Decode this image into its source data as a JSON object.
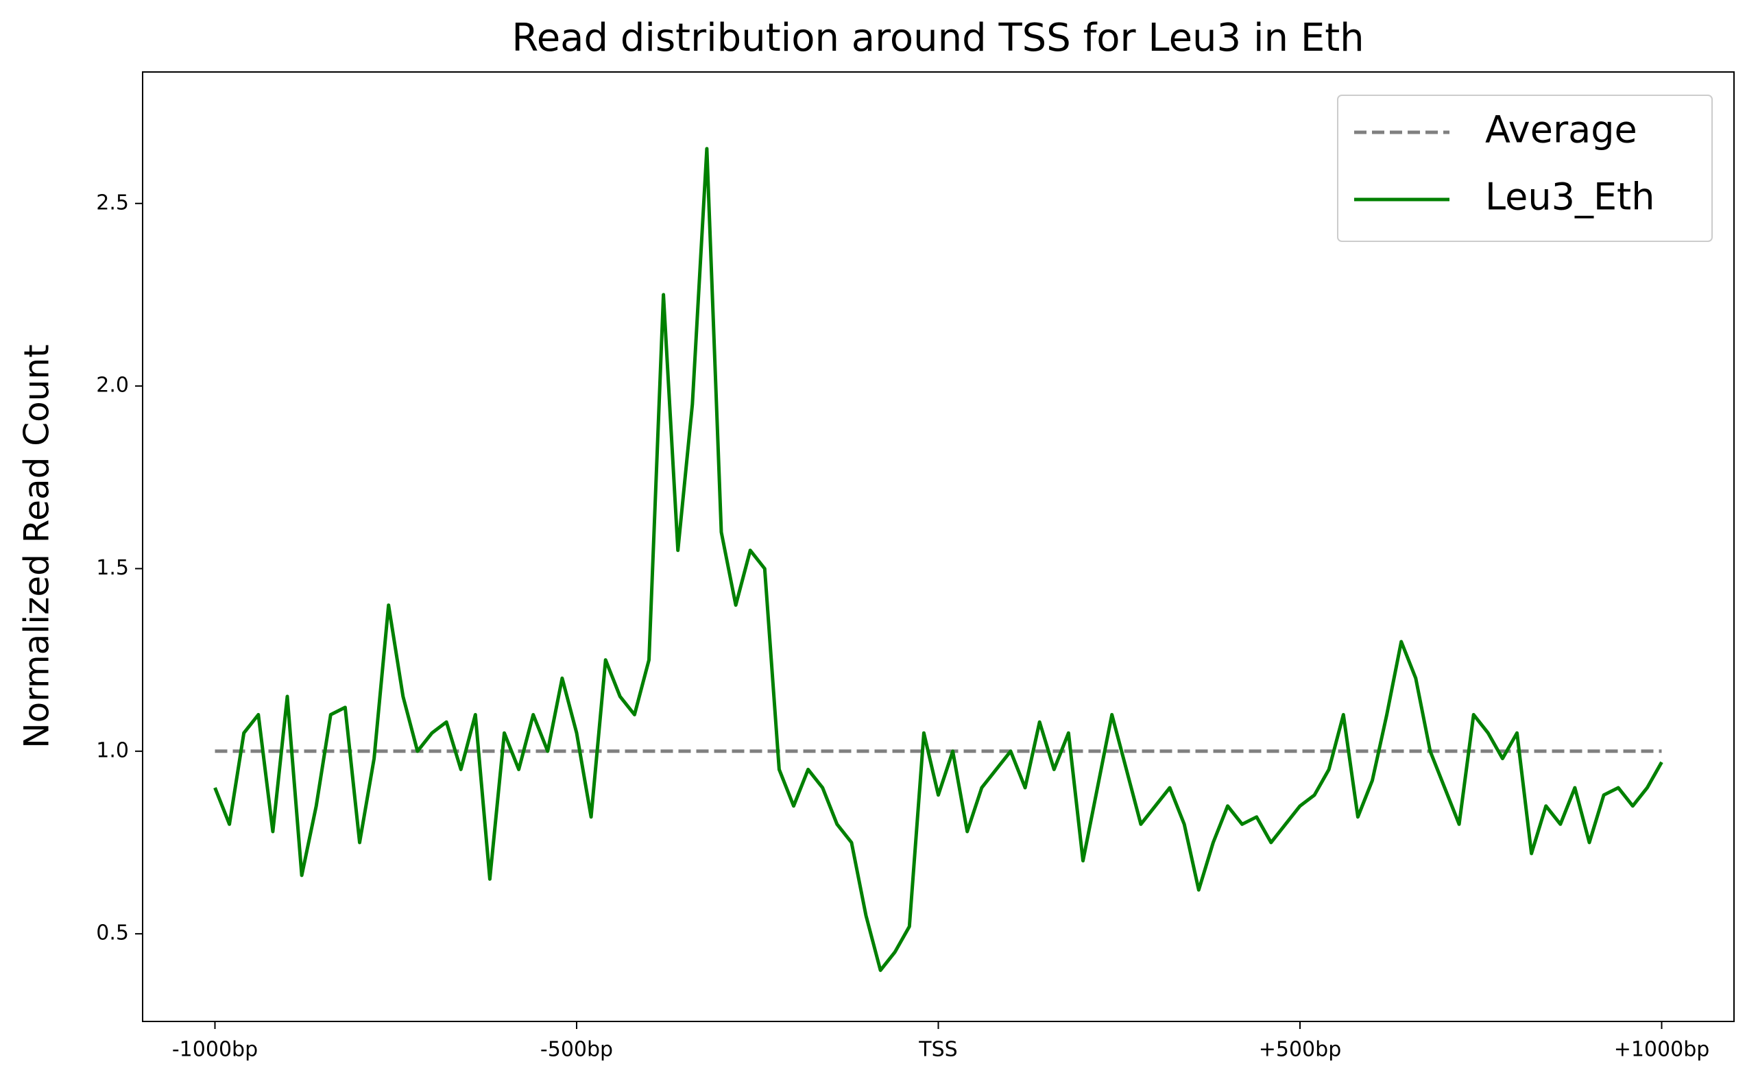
{
  "chart_data": {
    "type": "line",
    "title": "Read distribution around TSS for Leu3 in Eth",
    "y_label": "Normalized Read Count",
    "xlim": [
      -1100,
      1100
    ],
    "ylim": [
      0.26,
      2.86
    ],
    "xticks": [
      {
        "value": -1000,
        "label": "-1000bp"
      },
      {
        "value": -500,
        "label": "-500bp"
      },
      {
        "value": 0,
        "label": "TSS"
      },
      {
        "value": 500,
        "label": "+500bp"
      },
      {
        "value": 1000,
        "label": "+1000bp"
      }
    ],
    "yticks": [
      0.5,
      {
        "value": 1,
        "label": "1.0"
      },
      1.5,
      {
        "value": 2,
        "label": "2.0"
      },
      2.5
    ],
    "legend": "upper right",
    "series": [
      {
        "name": "Average",
        "color": "#808080",
        "dashed": true,
        "x": [
          -1000,
          1000
        ],
        "values": [
          1,
          1
        ]
      },
      {
        "name": "Leu3_Eth",
        "color": "#008000",
        "dashed": false,
        "x": [
          -1000,
          -980,
          -960,
          -940,
          -920,
          -900,
          -880,
          -860,
          -840,
          -820,
          -800,
          -780,
          -760,
          -740,
          -720,
          -700,
          -680,
          -660,
          -640,
          -620,
          -600,
          -580,
          -560,
          -540,
          -520,
          -500,
          -480,
          -460,
          -440,
          -420,
          -400,
          -380,
          -360,
          -340,
          -320,
          -300,
          -280,
          -260,
          -240,
          -220,
          -200,
          -180,
          -160,
          -140,
          -120,
          -100,
          -80,
          -60,
          -40,
          -20,
          0,
          20,
          40,
          60,
          80,
          100,
          120,
          140,
          160,
          180,
          200,
          220,
          240,
          260,
          280,
          300,
          320,
          340,
          360,
          380,
          400,
          420,
          440,
          460,
          480,
          500,
          520,
          540,
          560,
          580,
          600,
          620,
          640,
          660,
          680,
          700,
          720,
          740,
          760,
          780,
          800,
          820,
          840,
          860,
          880,
          900,
          920,
          940,
          960,
          980,
          1000
        ],
        "values": [
          0.9,
          0.8,
          1.05,
          1.1,
          0.78,
          1.15,
          0.66,
          0.85,
          1.1,
          1.12,
          0.75,
          0.98,
          1.4,
          1.15,
          1.0,
          1.05,
          1.08,
          0.95,
          1.1,
          0.65,
          1.05,
          0.95,
          1.1,
          1.0,
          1.2,
          1.05,
          0.82,
          1.25,
          1.15,
          1.1,
          1.25,
          2.25,
          1.55,
          1.95,
          2.65,
          1.6,
          1.4,
          1.55,
          1.5,
          0.95,
          0.85,
          0.95,
          0.9,
          0.8,
          0.75,
          0.55,
          0.4,
          0.45,
          0.52,
          1.05,
          0.88,
          1.0,
          0.78,
          0.9,
          0.95,
          1.0,
          0.9,
          1.08,
          0.95,
          1.05,
          0.7,
          0.9,
          1.1,
          0.95,
          0.8,
          0.85,
          0.9,
          0.8,
          0.62,
          0.75,
          0.85,
          0.8,
          0.82,
          0.75,
          0.8,
          0.85,
          0.88,
          0.95,
          1.1,
          0.82,
          0.92,
          1.1,
          1.3,
          1.2,
          1.0,
          0.9,
          0.8,
          1.1,
          1.05,
          0.98,
          1.05,
          0.72,
          0.85,
          0.8,
          0.9,
          0.75,
          0.88,
          0.9,
          0.85,
          0.9,
          0.97
        ]
      }
    ]
  }
}
